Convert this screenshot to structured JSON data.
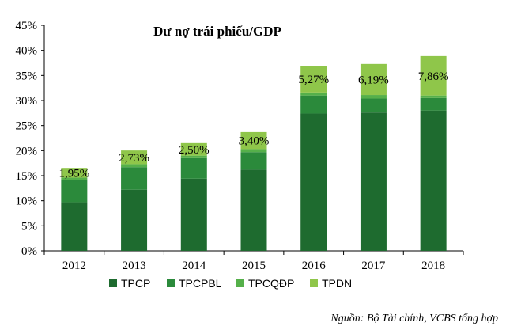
{
  "chart_data": {
    "type": "bar",
    "stacked": true,
    "title": "Dư nợ trái phiếu/GDP",
    "xlabel": "",
    "ylabel": "",
    "categories": [
      "2012",
      "2013",
      "2014",
      "2015",
      "2016",
      "2017",
      "2018"
    ],
    "ylim": [
      0,
      45
    ],
    "yticks": [
      "0%",
      "5%",
      "10%",
      "15%",
      "20%",
      "25%",
      "30%",
      "35%",
      "40%",
      "45%"
    ],
    "grid": false,
    "legend_position": "bottom",
    "series": [
      {
        "name": "TPCP",
        "color": "#1e6b2f",
        "values": [
          9.7,
          12.2,
          14.4,
          16.2,
          27.4,
          27.6,
          28.0
        ]
      },
      {
        "name": "TPCPBL",
        "color": "#2b8a3b",
        "values": [
          4.4,
          4.5,
          4.1,
          3.5,
          3.6,
          2.8,
          2.5
        ]
      },
      {
        "name": "TPCQĐP",
        "color": "#55b04a",
        "values": [
          0.5,
          0.6,
          0.5,
          0.6,
          0.6,
          0.7,
          0.5
        ]
      },
      {
        "name": "TPDN",
        "color": "#8fc64a",
        "values": [
          1.95,
          2.73,
          2.5,
          3.4,
          5.27,
          6.19,
          7.86
        ]
      }
    ],
    "data_labels": [
      "1,95%",
      "2,73%",
      "2,50%",
      "3,40%",
      "5,27%",
      "6,19%",
      "7,86%"
    ]
  },
  "source_note": "Nguồn: Bộ Tài chính, VCBS tổng hợp"
}
